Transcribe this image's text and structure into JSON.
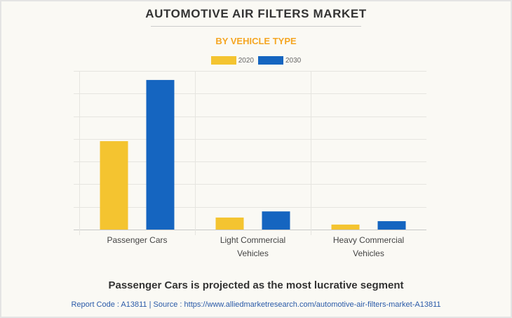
{
  "chart_data": {
    "type": "bar",
    "title": "AUTOMOTIVE AIR FILTERS MARKET",
    "subtitle": "BY VEHICLE TYPE",
    "xlabel": "",
    "ylabel": "",
    "categories": [
      [
        "Passenger Cars"
      ],
      [
        "Light Commercial",
        "Vehicles"
      ],
      [
        "Heavy Commercial",
        "Vehicles"
      ]
    ],
    "series": [
      {
        "name": "2020",
        "color": "#f4c430",
        "values": [
          3.9,
          0.53,
          0.22
        ]
      },
      {
        "name": "2030",
        "color": "#1565c0",
        "values": [
          6.6,
          0.8,
          0.37
        ]
      }
    ],
    "ylim": [
      0,
      7
    ],
    "y_tick_labels_shown": false,
    "grid": true,
    "legend": "top-center"
  },
  "colors": {
    "title": "#333333",
    "subtitle": "#f5a623",
    "source": "#2a5aa8"
  },
  "headline": "Passenger Cars is projected as the most lucrative segment",
  "source_line": "Report Code : A13811  |  Source : https://www.alliedmarketresearch.com/automotive-air-filters-market-A13811"
}
